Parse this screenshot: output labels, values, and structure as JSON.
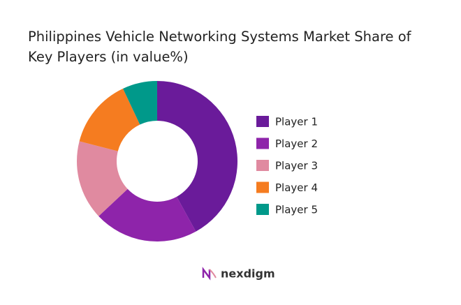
{
  "chart_data": {
    "type": "donut",
    "title": "Philippines Vehicle Networking Systems Market Share of Key Players (in value%)",
    "categories": [
      "Player 1",
      "Player 2",
      "Player 3",
      "Player 4",
      "Player 5"
    ],
    "values": [
      42,
      21,
      16,
      14,
      7
    ],
    "colors": [
      "#6a1b9a",
      "#8e24aa",
      "#e08aa0",
      "#f57c20",
      "#00998a"
    ],
    "legend": "right"
  },
  "footer": {
    "brand": "nexdigm"
  }
}
